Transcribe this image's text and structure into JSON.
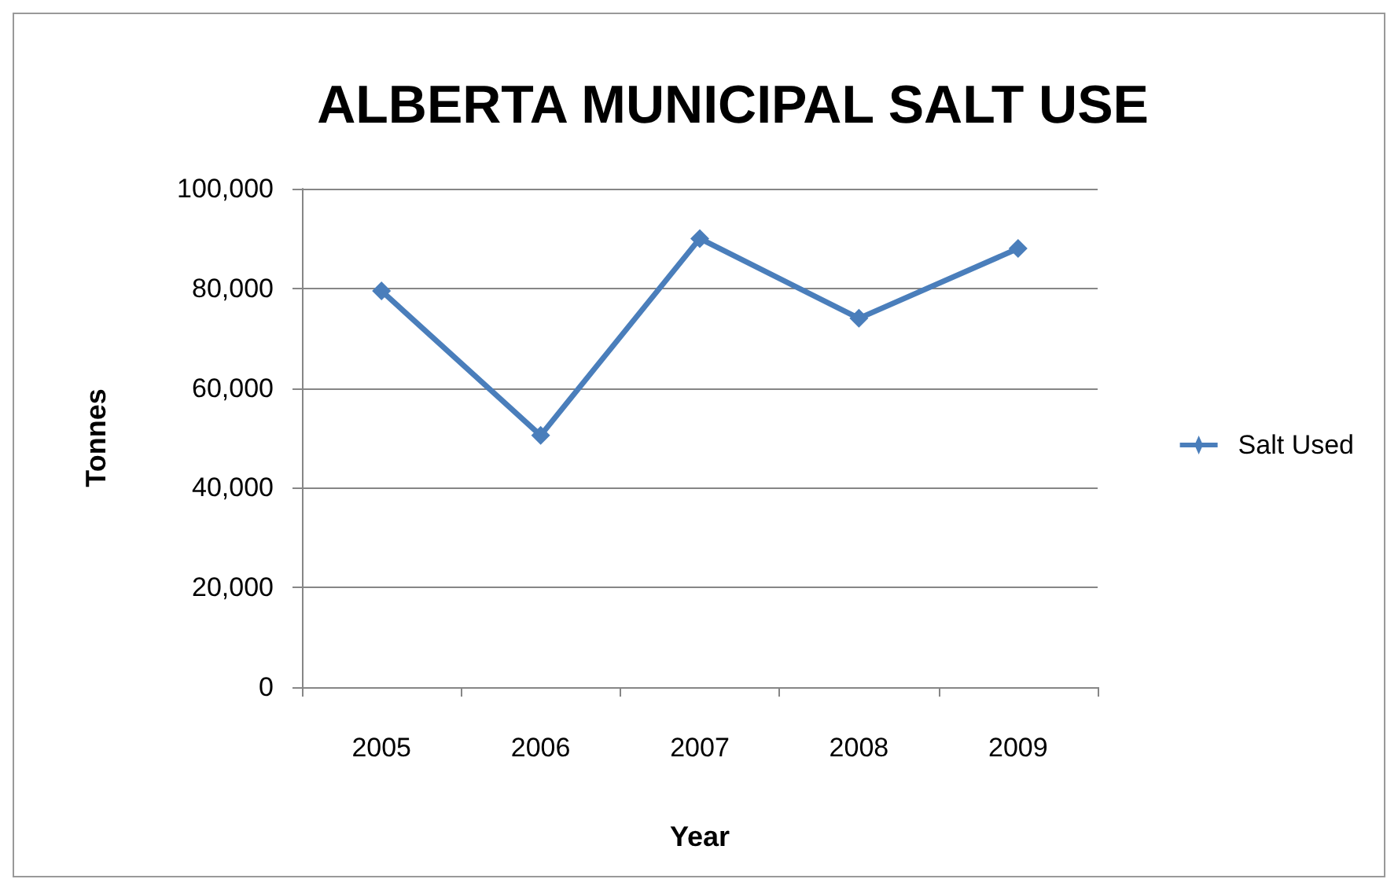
{
  "chart_data": {
    "type": "line",
    "title": "ALBERTA MUNICIPAL SALT USE",
    "xlabel": "Year",
    "ylabel": "Tonnes",
    "categories": [
      "2005",
      "2006",
      "2007",
      "2008",
      "2009"
    ],
    "series": [
      {
        "name": "Salt Used",
        "color": "#4a7ebb",
        "values": [
          79500,
          50500,
          90000,
          74000,
          88000
        ]
      }
    ],
    "ylim": [
      0,
      100000
    ],
    "yticks": [
      0,
      {
        "value": 20000,
        "label": "20,000"
      },
      {
        "value": 40000,
        "label": "40,000"
      },
      {
        "value": 60000,
        "label": "60,000"
      },
      {
        "value": 80000,
        "label": "80,000"
      },
      {
        "value": 100000,
        "label": "100,000"
      }
    ],
    "grid": "y",
    "legend": "right",
    "marker": "diamond",
    "line_style": "solid"
  }
}
